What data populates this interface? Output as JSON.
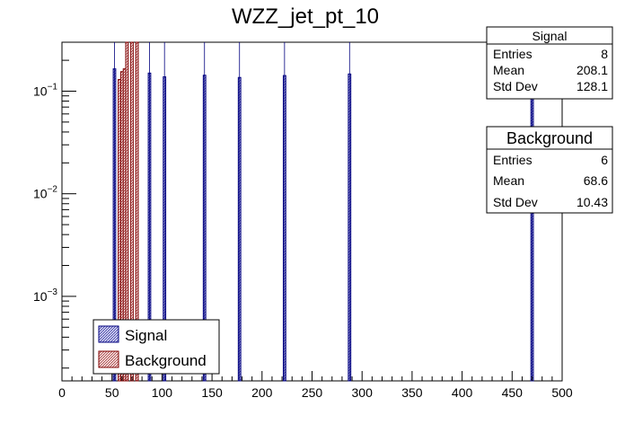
{
  "chart_data": {
    "type": "bar",
    "title": "WZZ_jet_pt_10",
    "xlabel": "",
    "ylabel": "",
    "xlim": [
      0,
      500
    ],
    "ylim": [
      0.00015,
      0.3
    ],
    "yscale": "log",
    "x_ticks": [
      0,
      50,
      100,
      150,
      200,
      250,
      300,
      350,
      400,
      450,
      500
    ],
    "x_tick_labels": [
      "0",
      "50",
      "100",
      "150",
      "200",
      "250",
      "300",
      "350",
      "400",
      "450",
      "500"
    ],
    "y_ticks": [
      0.1,
      0.01,
      0.001
    ],
    "y_tick_bases": [
      "10",
      "10",
      "10"
    ],
    "y_tick_exponents": [
      "−1",
      "−2",
      "−3"
    ],
    "bin_width": 2.5,
    "series": [
      {
        "name": "Signal",
        "color": "#00007f",
        "fill": "#c7c7ee",
        "bins": [
          {
            "x": 52.5,
            "value": 0.165
          },
          {
            "x": 87.5,
            "value": 0.15
          },
          {
            "x": 102.5,
            "value": 0.138
          },
          {
            "x": 142.5,
            "value": 0.143
          },
          {
            "x": 177.5,
            "value": 0.136
          },
          {
            "x": 222.5,
            "value": 0.142
          },
          {
            "x": 287.5,
            "value": 0.147
          },
          {
            "x": 470,
            "value": 0.16
          }
        ]
      },
      {
        "name": "Background",
        "color": "#7f0000",
        "fill": "#f4d6d6",
        "bins": [
          {
            "x": 57.5,
            "value": 0.13
          },
          {
            "x": 60,
            "value": 0.155
          },
          {
            "x": 62.5,
            "value": 0.165
          },
          {
            "x": 65,
            "value": 0.3
          },
          {
            "x": 70,
            "value": 0.3
          },
          {
            "x": 75,
            "value": 0.3
          }
        ]
      }
    ],
    "stats": [
      {
        "title": "Signal",
        "rows": [
          [
            "Entries",
            "8"
          ],
          [
            "Mean",
            "208.1"
          ],
          [
            "Std Dev",
            "128.1"
          ]
        ]
      },
      {
        "title": "Background",
        "rows": [
          [
            "Entries",
            "6"
          ],
          [
            "Mean",
            "68.6"
          ],
          [
            "Std Dev",
            "10.43"
          ]
        ]
      }
    ],
    "legend": {
      "position": "bottom-left",
      "entries": [
        {
          "label": "Signal",
          "color": "#00007f",
          "fill": "#c7c7ee"
        },
        {
          "label": "Background",
          "color": "#7f0000",
          "fill": "#f4d6d6"
        }
      ]
    }
  }
}
